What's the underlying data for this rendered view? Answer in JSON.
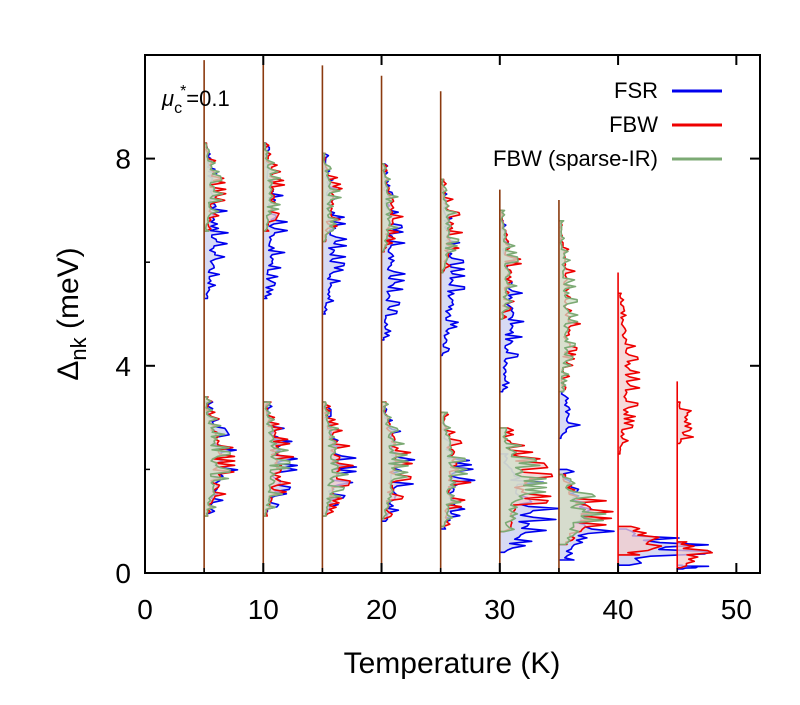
{
  "chart_data": {
    "type": "line",
    "annotation": {
      "main": "μ",
      "sub": "c",
      "sup": "*",
      "rest": "=0.1"
    },
    "xlabel": "Temperature (K)",
    "ylabel": {
      "main": "Δ",
      "sub": "nk",
      "rest": " (meV)"
    },
    "xlim": [
      0,
      52
    ],
    "ylim": [
      0,
      10
    ],
    "xticks": [
      0,
      10,
      20,
      30,
      40,
      50
    ],
    "yticks": [
      0,
      4,
      8
    ],
    "xtick_labels": [
      "0",
      "10",
      "20",
      "30",
      "40",
      "50"
    ],
    "ytick_labels": [
      "0",
      "4",
      "8"
    ],
    "grid": false,
    "legend": {
      "position": "top-right"
    },
    "series": [
      {
        "name": "FSR",
        "color": "#0000ee",
        "fill": "#c9cdf0"
      },
      {
        "name": "FBW",
        "color": "#ee0000",
        "fill": "#f2cccc"
      },
      {
        "name": "FBW (sparse-IR)",
        "color": "#7caa74",
        "fill": "#cfe0c9"
      }
    ],
    "overlap_color": "#8b3a0f",
    "temperatures": [
      5,
      10,
      15,
      20,
      25,
      30,
      35,
      40,
      45
    ],
    "distributions": [
      {
        "T": 5,
        "FSR": {
          "low": [
            1.15,
            3.3
          ],
          "high": [
            5.3,
            8.3
          ]
        },
        "FBW": {
          "low": [
            1.1,
            3.4
          ],
          "high": [
            6.6,
            8.3
          ]
        },
        "FBW_sparse_IR": {
          "low": [
            1.1,
            3.4
          ],
          "high": [
            6.6,
            8.3
          ]
        }
      },
      {
        "T": 10,
        "FSR": {
          "low": [
            1.15,
            3.3
          ],
          "high": [
            5.3,
            8.3
          ]
        },
        "FBW": {
          "low": [
            1.1,
            3.3
          ],
          "high": [
            6.6,
            8.3
          ]
        },
        "FBW_sparse_IR": {
          "low": [
            1.1,
            3.3
          ],
          "high": [
            6.6,
            8.3
          ]
        }
      },
      {
        "T": 15,
        "FSR": {
          "low": [
            1.15,
            3.2
          ],
          "high": [
            5.0,
            8.1
          ]
        },
        "FBW": {
          "low": [
            1.1,
            3.3
          ],
          "high": [
            6.4,
            8.1
          ]
        },
        "FBW_sparse_IR": {
          "low": [
            1.1,
            3.3
          ],
          "high": [
            6.4,
            8.1
          ]
        }
      },
      {
        "T": 20,
        "FSR": {
          "low": [
            1.0,
            3.2
          ],
          "high": [
            4.5,
            7.9
          ]
        },
        "FBW": {
          "low": [
            1.05,
            3.3
          ],
          "high": [
            6.2,
            7.9
          ]
        },
        "FBW_sparse_IR": {
          "low": [
            1.05,
            3.3
          ],
          "high": [
            6.2,
            7.9
          ]
        }
      },
      {
        "T": 25,
        "FSR": {
          "low": [
            0.85,
            2.9
          ],
          "high": [
            4.2,
            7.4
          ]
        },
        "FBW": {
          "low": [
            0.9,
            3.1
          ],
          "high": [
            5.8,
            7.6
          ]
        },
        "FBW_sparse_IR": {
          "low": [
            0.9,
            3.1
          ],
          "high": [
            5.8,
            7.6
          ]
        }
      },
      {
        "T": 30,
        "FSR": {
          "low": [
            0.4,
            2.3
          ],
          "high": [
            3.5,
            6.8
          ]
        },
        "FBW": {
          "low": [
            0.8,
            2.8
          ],
          "high": [
            4.9,
            7.0
          ]
        },
        "FBW_sparse_IR": {
          "low": [
            0.8,
            2.8
          ],
          "high": [
            4.9,
            7.0
          ]
        }
      },
      {
        "T": 35,
        "FSR": {
          "low": [
            0.25,
            2.0
          ],
          "high": [
            2.6,
            3.5
          ]
        },
        "FBW": {
          "low": [
            0.55,
            1.9
          ],
          "high": [
            3.5,
            6.8
          ]
        },
        "FBW_sparse_IR": {
          "low": [
            0.55,
            1.9
          ],
          "high": [
            3.5,
            6.8
          ]
        }
      },
      {
        "T": 40,
        "FSR": {
          "low": [
            0.15,
            0.85
          ],
          "high": null
        },
        "FBW": {
          "low": [
            0.35,
            0.9
          ],
          "high": [
            2.3,
            5.4
          ]
        },
        "FBW_sparse_IR": null
      },
      {
        "T": 45,
        "FSR": {
          "low": [
            0.08,
            0.15
          ],
          "high": null
        },
        "FBW": {
          "low": [
            0.1,
            0.6
          ],
          "high": [
            2.5,
            3.3
          ]
        },
        "FBW_sparse_IR": null
      }
    ]
  }
}
